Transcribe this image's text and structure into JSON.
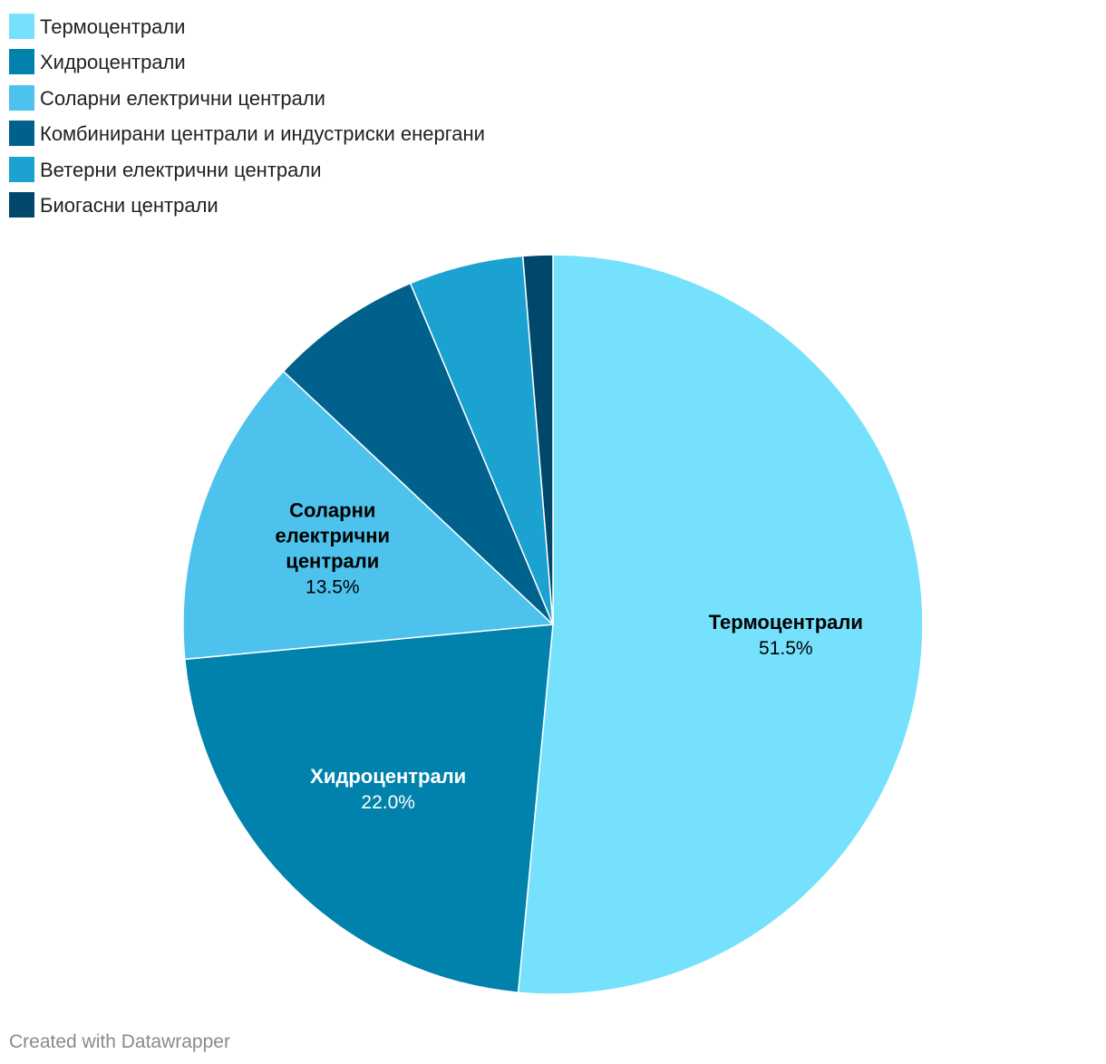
{
  "chart_data": {
    "type": "pie",
    "title": "",
    "categories": [
      "Термоцентрали",
      "Хидроцентрали",
      "Соларни електрични централи",
      "Комбинирани централи и индустриски енергани",
      "Ветерни електрични централи",
      "Биогасни централи"
    ],
    "values": [
      51.5,
      22.0,
      13.5,
      6.7,
      5.0,
      1.3
    ],
    "colors": [
      "#75e1fd",
      "#0082ad",
      "#4dc2ed",
      "#00628c",
      "#1ba2d0",
      "#00476b"
    ],
    "slice_labels": [
      {
        "name_lines": [
          "Термоцентрали"
        ],
        "value_text": "51.5%",
        "text_color": "#000000"
      },
      {
        "name_lines": [
          "Хидроцентрали"
        ],
        "value_text": "22.0%",
        "text_color": "#ffffff"
      },
      {
        "name_lines": [
          "Соларни",
          "електрични",
          "централи"
        ],
        "value_text": "13.5%",
        "text_color": "#000000"
      }
    ],
    "legend_placement": "top-left"
  },
  "legend": {
    "items": [
      {
        "label": "Термоцентрали",
        "color": "#75e1fd"
      },
      {
        "label": "Хидроцентрали",
        "color": "#0082ad"
      },
      {
        "label": "Соларни електрични централи",
        "color": "#4dc2ed"
      },
      {
        "label": "Комбинирани централи и индустриски енергани",
        "color": "#00628c"
      },
      {
        "label": "Ветерни електрични централи",
        "color": "#1ba2d0"
      },
      {
        "label": "Биогасни централи",
        "color": "#00476b"
      }
    ]
  },
  "footer": {
    "credit": "Created with Datawrapper"
  }
}
